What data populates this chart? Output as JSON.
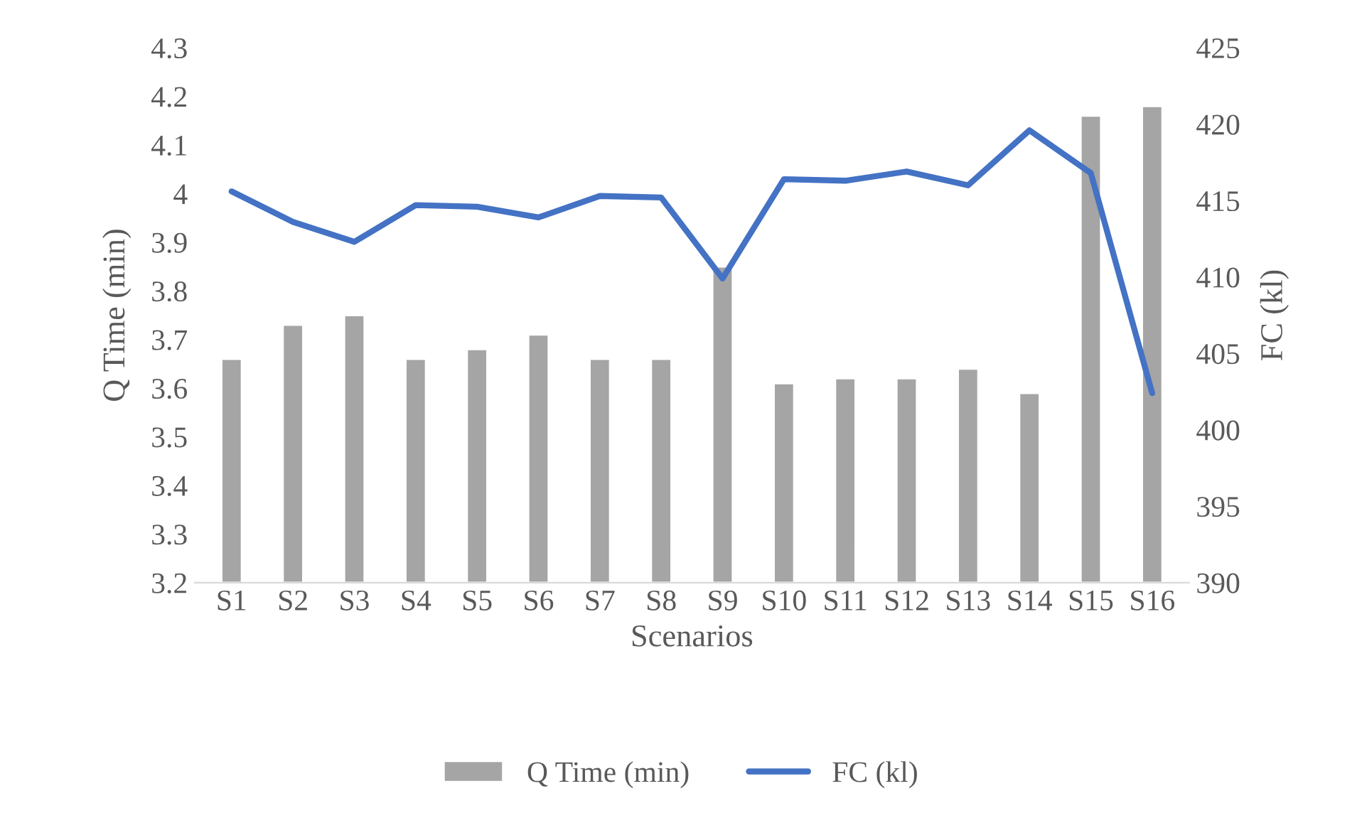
{
  "chart_data": {
    "type": "bar",
    "xlabel": "Scenarios",
    "ylabel": "Q Time (min)",
    "y2label": "FC (kl)",
    "categories": [
      "S1",
      "S2",
      "S3",
      "S4",
      "S5",
      "S6",
      "S7",
      "S8",
      "S9",
      "S10",
      "S11",
      "S12",
      "S13",
      "S14",
      "S15",
      "S16"
    ],
    "series": [
      {
        "name": "Q Time (min)",
        "color": "#a5a5a5",
        "values": [
          3.66,
          3.73,
          3.75,
          3.66,
          3.68,
          3.71,
          3.66,
          3.66,
          3.85,
          3.61,
          3.62,
          3.62,
          3.64,
          3.59,
          4.16,
          4.18
        ]
      },
      {
        "name": "FC (kl)",
        "type": "line",
        "axis": "y2",
        "color": "#4472c4",
        "values": [
          415.6,
          413.6,
          412.3,
          414.7,
          414.6,
          413.9,
          415.3,
          415.2,
          409.9,
          416.4,
          416.3,
          416.9,
          416.0,
          419.6,
          416.8,
          402.4
        ]
      }
    ],
    "ylim": [
      3.2,
      4.3
    ],
    "yticks": [
      3.2,
      3.3,
      3.4,
      3.5,
      3.6,
      3.7,
      3.8,
      3.9,
      {
        "value": 4.0,
        "label": "4"
      },
      4.1,
      4.2,
      4.3
    ],
    "y2lim": [
      390,
      425
    ],
    "y2ticks": [
      390,
      395,
      400,
      405,
      410,
      415,
      420,
      425
    ],
    "legend": "bottom",
    "grid": false,
    "marker": "none",
    "line_style": "solid"
  }
}
